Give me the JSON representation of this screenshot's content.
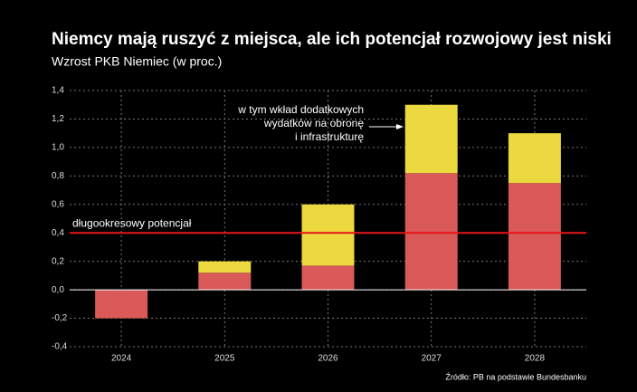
{
  "chart_data": {
    "type": "stacked_bar",
    "title": "Niemcy mają ruszyć z miejsca, ale ich potencjał rozwojowy jest niski",
    "subtitle": "Wzrost PKB Niemiec (w proc.)",
    "categories": [
      "2024",
      "2025",
      "2026",
      "2027",
      "2028"
    ],
    "series": [
      {
        "color": "#d95a58",
        "values": [
          -0.2,
          0.12,
          0.17,
          0.82,
          0.75
        ]
      },
      {
        "color": "#ecd940",
        "values": [
          null,
          0.08,
          0.43,
          0.48,
          0.35
        ]
      }
    ],
    "ylim": [
      -0.4,
      1.4
    ],
    "yticks": [
      {
        "value": -0.4,
        "label": "-0,4"
      },
      {
        "value": -0.2,
        "label": "-0,2"
      },
      {
        "value": 0,
        "label": "0,0"
      },
      {
        "value": 0.2,
        "label": "0,2"
      },
      {
        "value": 0.4,
        "label": "0,4"
      },
      {
        "value": 0.6,
        "label": "0,6"
      },
      {
        "value": 0.8,
        "label": "0,8"
      },
      {
        "value": 1.0,
        "label": "1,0"
      },
      {
        "value": 1.2,
        "label": "1,2"
      },
      {
        "value": 1.4,
        "label": "1,4"
      }
    ],
    "grid": true,
    "reference_line": {
      "value": 0.4,
      "label": "długookresowy potencjał",
      "color": "#e8141a"
    },
    "annotation": [
      "w tym wkład dodatkowych",
      "wydatków na obronę",
      "i infrastrukturę"
    ],
    "source": "Źródło: PB na podstawie Bundesbanku"
  }
}
